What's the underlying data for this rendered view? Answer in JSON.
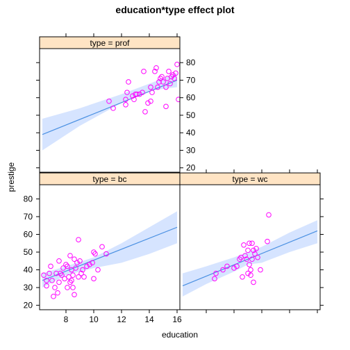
{
  "chart_data": {
    "type": "scatter",
    "title": "education*type effect plot",
    "xlabel": "education",
    "ylabel": "prestige",
    "xlim": [
      6.1,
      16.2
    ],
    "ylim": [
      17.5,
      88
    ],
    "x_ticks": [
      8,
      10,
      12,
      14,
      16
    ],
    "y_ticks": [
      20,
      30,
      40,
      50,
      60,
      70,
      80
    ],
    "colors": {
      "points": "#ff00ff",
      "line": "#4a90e2",
      "band": "#d6e4ff",
      "strip": "#ffe4c4",
      "frame": "#000000"
    },
    "panels": [
      {
        "name": "type = prof",
        "line": {
          "x": [
            6.3,
            16.0
          ],
          "y": [
            39,
            70
          ]
        },
        "band_upper": [
          [
            6.3,
            48
          ],
          [
            9,
            54
          ],
          [
            12,
            62
          ],
          [
            14,
            68
          ],
          [
            16,
            74
          ]
        ],
        "band_lower": [
          [
            6.3,
            30
          ],
          [
            9,
            44
          ],
          [
            12,
            57
          ],
          [
            14,
            64
          ],
          [
            16,
            66
          ]
        ],
        "points": [
          [
            11.1,
            58
          ],
          [
            11.4,
            54
          ],
          [
            12.3,
            59
          ],
          [
            12.3,
            56
          ],
          [
            12.4,
            63
          ],
          [
            12.5,
            69
          ],
          [
            12.8,
            61
          ],
          [
            12.9,
            59
          ],
          [
            13.0,
            62
          ],
          [
            13.1,
            62
          ],
          [
            13.5,
            63
          ],
          [
            13.6,
            75
          ],
          [
            13.7,
            52
          ],
          [
            13.9,
            57
          ],
          [
            14.1,
            66
          ],
          [
            14.1,
            58
          ],
          [
            14.2,
            63
          ],
          [
            14.4,
            75
          ],
          [
            14.5,
            77
          ],
          [
            14.6,
            66
          ],
          [
            14.7,
            69
          ],
          [
            14.9,
            72
          ],
          [
            15.0,
            69
          ],
          [
            15.2,
            66
          ],
          [
            15.2,
            55
          ],
          [
            15.3,
            71
          ],
          [
            15.4,
            75
          ],
          [
            15.5,
            68
          ],
          [
            15.6,
            72
          ],
          [
            15.7,
            73
          ],
          [
            15.8,
            71
          ],
          [
            15.9,
            74
          ],
          [
            16.0,
            79
          ],
          [
            16.1,
            59
          ],
          [
            14.8,
            71
          ],
          [
            13.3,
            62
          ]
        ]
      },
      {
        "name": "type = bc",
        "line": {
          "x": [
            6.3,
            16.0
          ],
          "y": [
            34,
            64
          ]
        },
        "band_upper": [
          [
            6.3,
            38
          ],
          [
            8,
            42
          ],
          [
            10,
            47
          ],
          [
            12,
            55
          ],
          [
            14,
            64
          ],
          [
            16,
            73
          ]
        ],
        "band_lower": [
          [
            6.3,
            30
          ],
          [
            8,
            37
          ],
          [
            10,
            41
          ],
          [
            12,
            44
          ],
          [
            14,
            49
          ],
          [
            16,
            55
          ]
        ],
        "points": [
          [
            6.4,
            37
          ],
          [
            6.6,
            34
          ],
          [
            6.6,
            31
          ],
          [
            6.8,
            38
          ],
          [
            6.9,
            42
          ],
          [
            7.1,
            25
          ],
          [
            7.2,
            30
          ],
          [
            7.3,
            38
          ],
          [
            7.4,
            27
          ],
          [
            7.5,
            45
          ],
          [
            7.5,
            33
          ],
          [
            7.6,
            38
          ],
          [
            7.7,
            37
          ],
          [
            7.8,
            41
          ],
          [
            7.9,
            35
          ],
          [
            8.0,
            43
          ],
          [
            8.1,
            42
          ],
          [
            8.1,
            30
          ],
          [
            8.2,
            36
          ],
          [
            8.3,
            48
          ],
          [
            8.3,
            33
          ],
          [
            8.4,
            40
          ],
          [
            8.5,
            37
          ],
          [
            8.5,
            30
          ],
          [
            8.6,
            46
          ],
          [
            8.6,
            26
          ],
          [
            8.7,
            41
          ],
          [
            8.8,
            44
          ],
          [
            8.9,
            36
          ],
          [
            8.9,
            57
          ],
          [
            9.0,
            45
          ],
          [
            9.1,
            38
          ],
          [
            9.2,
            40
          ],
          [
            9.3,
            36
          ],
          [
            9.5,
            42
          ],
          [
            9.7,
            43
          ],
          [
            9.9,
            44
          ],
          [
            10.0,
            50
          ],
          [
            10.0,
            35
          ],
          [
            10.1,
            49
          ],
          [
            10.3,
            40
          ],
          [
            10.6,
            53
          ],
          [
            10.9,
            49
          ],
          [
            8.4,
            34
          ],
          [
            7.0,
            34
          ]
        ]
      },
      {
        "name": "type = wc",
        "line": {
          "x": [
            6.3,
            16.0
          ],
          "y": [
            31,
            62
          ]
        },
        "band_upper": [
          [
            6.3,
            38
          ],
          [
            8,
            42
          ],
          [
            10,
            47
          ],
          [
            11,
            50
          ],
          [
            12,
            53
          ],
          [
            14,
            61
          ],
          [
            16,
            68
          ]
        ],
        "band_lower": [
          [
            6.3,
            25
          ],
          [
            8,
            32
          ],
          [
            10,
            39
          ],
          [
            11,
            43
          ],
          [
            12,
            44
          ],
          [
            14,
            50
          ],
          [
            16,
            55
          ]
        ],
        "points": [
          [
            9.2,
            40
          ],
          [
            9.5,
            42
          ],
          [
            10.0,
            41
          ],
          [
            10.2,
            42
          ],
          [
            10.4,
            46
          ],
          [
            10.5,
            47
          ],
          [
            10.6,
            36
          ],
          [
            10.7,
            54
          ],
          [
            10.8,
            48
          ],
          [
            10.9,
            46
          ],
          [
            11.0,
            51
          ],
          [
            11.0,
            38
          ],
          [
            11.1,
            43
          ],
          [
            11.1,
            55
          ],
          [
            11.2,
            40
          ],
          [
            11.2,
            37
          ],
          [
            11.3,
            46
          ],
          [
            11.3,
            55
          ],
          [
            11.4,
            51
          ],
          [
            11.4,
            33
          ],
          [
            11.5,
            49
          ],
          [
            11.6,
            52
          ],
          [
            11.7,
            47
          ],
          [
            11.9,
            40
          ],
          [
            12.4,
            56
          ],
          [
            12.5,
            71
          ],
          [
            8.7,
            38
          ],
          [
            8.6,
            35
          ]
        ]
      }
    ]
  }
}
